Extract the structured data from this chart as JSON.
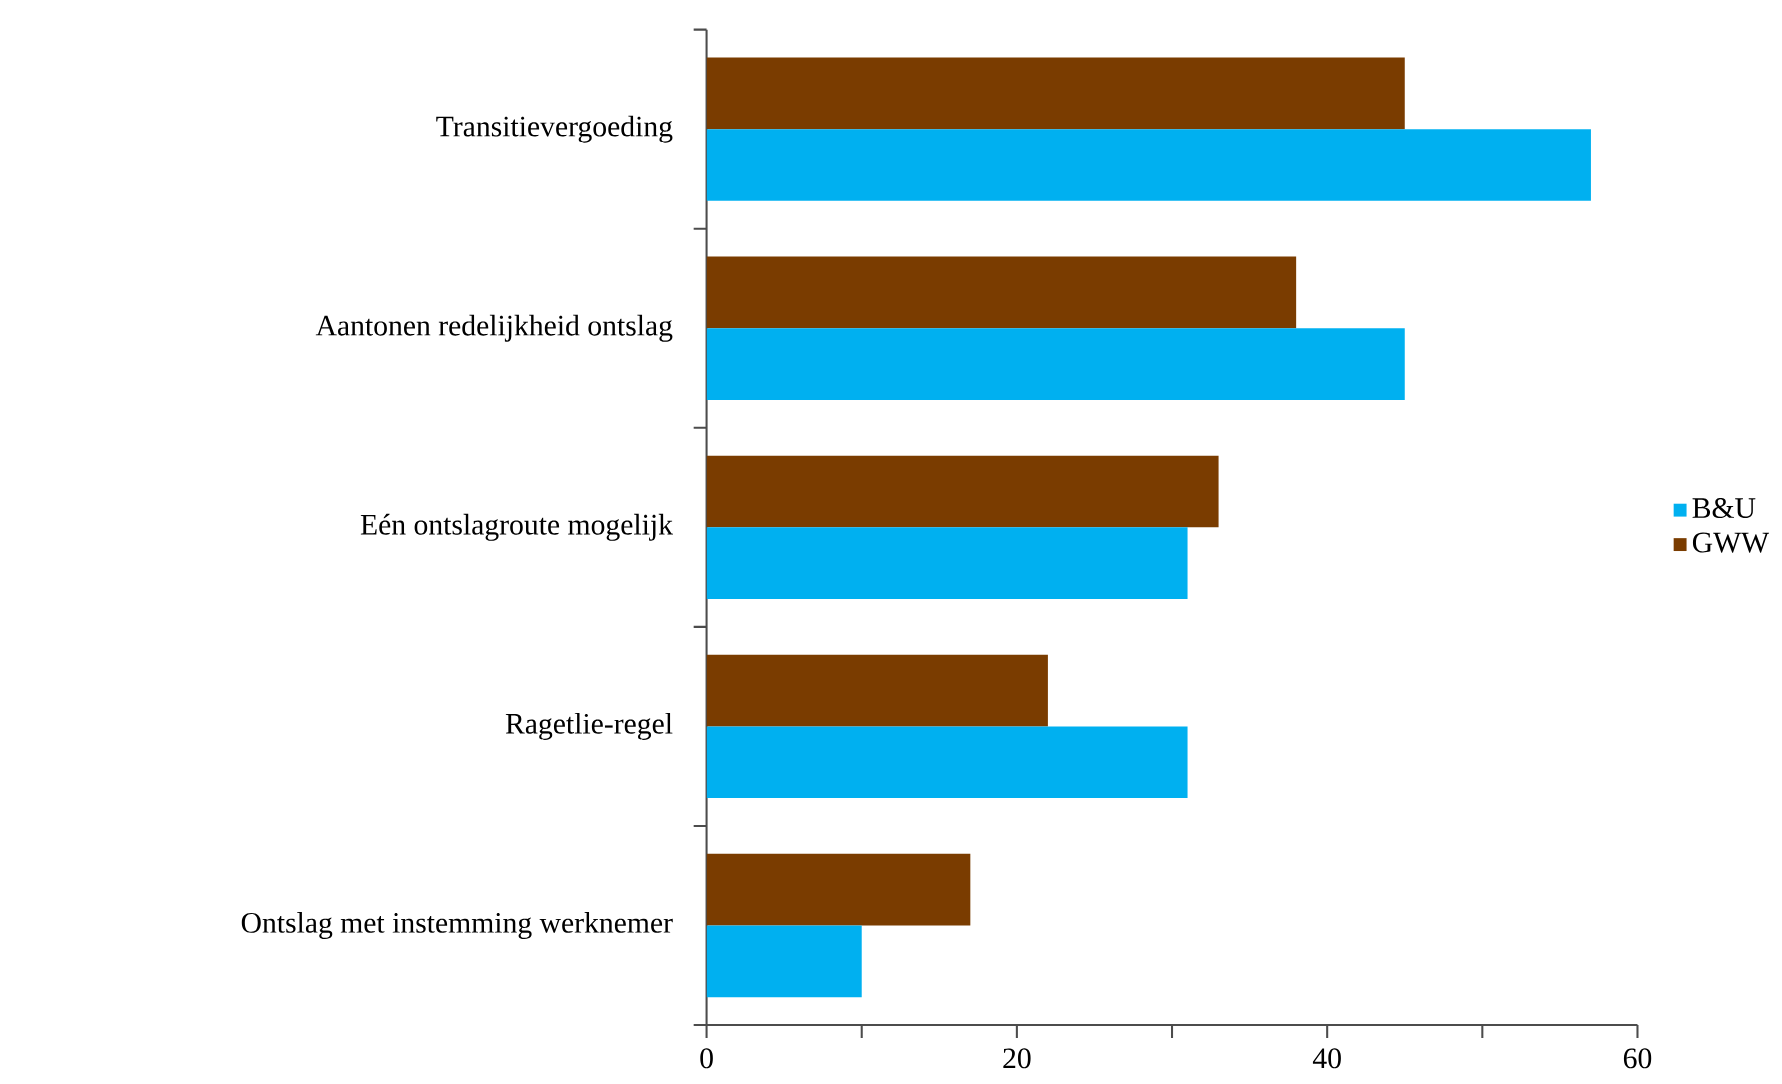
{
  "chart_data": {
    "type": "bar",
    "orientation": "horizontal",
    "categories": [
      "Transitievergoeding",
      "Aantonen redelijkheid ontslag",
      "Eén ontslagroute mogelijk",
      "Ragetlie-regel",
      "Ontslag met instemming werknemer"
    ],
    "series": [
      {
        "name": "B&U",
        "color": "#00b0f0",
        "values": [
          57,
          45,
          31,
          31,
          10
        ]
      },
      {
        "name": "GWW",
        "color": "#7a3c00",
        "values": [
          45,
          38,
          33,
          22,
          17
        ]
      }
    ],
    "xlim": [
      0,
      60
    ],
    "xticks": [
      0,
      {
        "value": 10,
        "label": null
      },
      20,
      {
        "value": 30,
        "label": null
      },
      40,
      {
        "value": 50,
        "label": null
      },
      60
    ],
    "grid": false,
    "legend": "right"
  }
}
